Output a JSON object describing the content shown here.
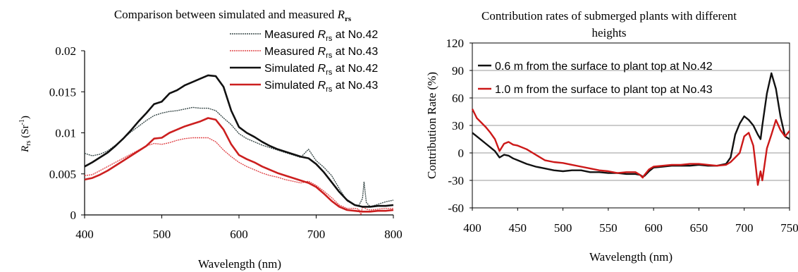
{
  "chart_data": [
    {
      "type": "line",
      "title": "Comparison between simulated and measured R rs",
      "title_parts": {
        "text": "Comparison between simulated and measured ",
        "symbol": "R",
        "subscript": "rs"
      },
      "xlabel": "Wavelength (nm)",
      "ylabel": "Rrs (Sr-1)",
      "ylabel_parts": {
        "symbol": "R",
        "subscript": "rs",
        "unit_open": " (Sr",
        "superscript": "-1",
        "unit_close": ")"
      },
      "xlim": [
        400,
        800
      ],
      "ylim": [
        0,
        0.02
      ],
      "xticks": [
        "400",
        "500",
        "600",
        "700",
        "800"
      ],
      "yticks": [
        "0",
        "0.005",
        "0.01",
        "0.015",
        "0.02"
      ],
      "grid": false,
      "legend_position": "top-right",
      "series": [
        {
          "name": "Measured Rrs at No.42",
          "legend_parts": {
            "pre": "Measured ",
            "symbol": "R",
            "subscript": "rs",
            "post": " at No.42"
          },
          "style": "measured",
          "color": "#3a4a4a",
          "x": [
            400,
            410,
            420,
            430,
            440,
            450,
            460,
            470,
            480,
            490,
            500,
            510,
            520,
            530,
            540,
            550,
            560,
            570,
            580,
            590,
            600,
            610,
            620,
            630,
            640,
            650,
            660,
            670,
            680,
            690,
            700,
            710,
            720,
            730,
            740,
            750,
            755,
            760,
            762,
            765,
            770,
            780,
            790,
            800
          ],
          "y": [
            0.0075,
            0.0072,
            0.0074,
            0.0078,
            0.0085,
            0.0093,
            0.0101,
            0.0108,
            0.0115,
            0.0121,
            0.0124,
            0.0126,
            0.0127,
            0.0129,
            0.0131,
            0.013,
            0.013,
            0.0127,
            0.0118,
            0.011,
            0.0099,
            0.0093,
            0.0089,
            0.0085,
            0.0082,
            0.0079,
            0.0076,
            0.0073,
            0.007,
            0.008,
            0.0066,
            0.0058,
            0.0048,
            0.0032,
            0.0017,
            0.0012,
            0.0011,
            0.002,
            0.004,
            0.0015,
            0.001,
            0.0013,
            0.0016,
            0.0018
          ]
        },
        {
          "name": "Measured Rrs at No.43",
          "legend_parts": {
            "pre": "Measured ",
            "symbol": "R",
            "subscript": "rs",
            "post": " at No.43"
          },
          "style": "measured",
          "color": "#e0484c",
          "x": [
            400,
            410,
            420,
            430,
            440,
            450,
            460,
            470,
            480,
            490,
            500,
            510,
            520,
            530,
            540,
            550,
            560,
            570,
            580,
            590,
            600,
            610,
            620,
            630,
            640,
            650,
            660,
            670,
            680,
            690,
            700,
            710,
            720,
            730,
            740,
            750,
            755,
            758,
            760,
            765,
            770,
            780,
            790,
            800
          ],
          "y": [
            0.0048,
            0.0049,
            0.0054,
            0.0059,
            0.0064,
            0.0069,
            0.0074,
            0.0079,
            0.0084,
            0.0087,
            0.0086,
            0.0088,
            0.0091,
            0.0093,
            0.0094,
            0.0094,
            0.0094,
            0.0089,
            0.0079,
            0.0071,
            0.0064,
            0.0059,
            0.0055,
            0.0051,
            0.0048,
            0.0046,
            0.0043,
            0.0041,
            0.0039,
            0.0041,
            0.0036,
            0.0029,
            0.0021,
            0.0012,
            0.0008,
            0.0008,
            0.0007,
            0.0,
            0.001,
            0.0007,
            0.0006,
            0.0007,
            0.0008,
            0.0008
          ]
        },
        {
          "name": "Simulated Rrs at No.42",
          "legend_parts": {
            "pre": "Simulated ",
            "symbol": "R",
            "subscript": "rs",
            "post": " at No.42"
          },
          "style": "simulated",
          "color": "#111111",
          "x": [
            400,
            410,
            420,
            430,
            440,
            450,
            460,
            470,
            480,
            490,
            500,
            510,
            520,
            530,
            540,
            550,
            560,
            570,
            580,
            590,
            600,
            610,
            620,
            630,
            640,
            650,
            660,
            670,
            680,
            690,
            700,
            710,
            720,
            730,
            740,
            750,
            760,
            770,
            780,
            790,
            800
          ],
          "y": [
            0.0059,
            0.0064,
            0.007,
            0.0076,
            0.0084,
            0.0093,
            0.0103,
            0.0114,
            0.0124,
            0.0135,
            0.0138,
            0.0148,
            0.0152,
            0.0158,
            0.0162,
            0.0166,
            0.017,
            0.0169,
            0.0156,
            0.0127,
            0.0107,
            0.01,
            0.0095,
            0.0089,
            0.0084,
            0.008,
            0.0077,
            0.0074,
            0.0071,
            0.0069,
            0.0062,
            0.0052,
            0.004,
            0.0028,
            0.0018,
            0.0012,
            0.001,
            0.001,
            0.0011,
            0.0011,
            0.0012
          ]
        },
        {
          "name": "Simulated Rrs at No.43",
          "legend_parts": {
            "pre": "Simulated ",
            "symbol": "R",
            "subscript": "rs",
            "post": " at No.43"
          },
          "style": "simulated",
          "color": "#cc1f1f",
          "x": [
            400,
            410,
            420,
            430,
            440,
            450,
            460,
            470,
            480,
            490,
            500,
            510,
            520,
            530,
            540,
            550,
            560,
            570,
            580,
            590,
            600,
            610,
            620,
            630,
            640,
            650,
            660,
            670,
            680,
            690,
            700,
            710,
            720,
            730,
            740,
            750,
            760,
            770,
            780,
            790,
            800
          ],
          "y": [
            0.0043,
            0.0045,
            0.0049,
            0.0054,
            0.006,
            0.0066,
            0.0072,
            0.0078,
            0.0084,
            0.0093,
            0.0094,
            0.01,
            0.0104,
            0.0108,
            0.0111,
            0.0114,
            0.0118,
            0.0116,
            0.0104,
            0.0086,
            0.0073,
            0.0068,
            0.0064,
            0.0059,
            0.0055,
            0.0051,
            0.0048,
            0.0045,
            0.0042,
            0.0039,
            0.0034,
            0.0026,
            0.0017,
            0.001,
            0.0006,
            0.0005,
            0.0004,
            0.0004,
            0.0005,
            0.0005,
            0.0006
          ]
        }
      ]
    },
    {
      "type": "line",
      "title": "Contribution rates of submerged plants with different heights",
      "title_lines": [
        "Contribution rates of submerged plants with different",
        "heights"
      ],
      "xlabel": "Wavelength (nm)",
      "ylabel": "Contribution Rate (%)",
      "xlim": [
        400,
        750
      ],
      "ylim": [
        -60,
        120
      ],
      "xticks": [
        "400",
        "450",
        "500",
        "550",
        "600",
        "650",
        "700",
        "750"
      ],
      "yticks": [
        "-60",
        "-30",
        "0",
        "30",
        "60",
        "90",
        "120"
      ],
      "grid": true,
      "legend_position": "top-left",
      "series": [
        {
          "name": "0.6 m from the surface to plant top at No.42",
          "color": "#111111",
          "x": [
            400,
            405,
            410,
            415,
            420,
            425,
            430,
            435,
            440,
            445,
            450,
            460,
            470,
            480,
            490,
            500,
            510,
            520,
            530,
            540,
            550,
            560,
            570,
            580,
            585,
            588,
            590,
            595,
            600,
            610,
            620,
            630,
            640,
            650,
            660,
            670,
            680,
            685,
            690,
            695,
            700,
            705,
            710,
            715,
            718,
            720,
            725,
            730,
            735,
            740,
            745,
            750
          ],
          "y": [
            22,
            18,
            14,
            10,
            6,
            2,
            -5,
            -2,
            -3,
            -6,
            -8,
            -12,
            -15,
            -17,
            -19,
            -20,
            -19,
            -19,
            -21,
            -21,
            -22,
            -22,
            -23,
            -23,
            -24,
            -26,
            -25,
            -20,
            -16,
            -15,
            -14,
            -14,
            -14,
            -13,
            -14,
            -14,
            -12,
            -5,
            20,
            32,
            40,
            36,
            30,
            20,
            15,
            30,
            65,
            87,
            70,
            40,
            18,
            15
          ]
        },
        {
          "name": "1.0 m from the surface to plant top at No.43",
          "color": "#cc1818",
          "x": [
            400,
            405,
            410,
            415,
            420,
            425,
            430,
            435,
            440,
            445,
            450,
            460,
            470,
            480,
            490,
            500,
            510,
            520,
            530,
            540,
            550,
            560,
            570,
            580,
            585,
            588,
            590,
            595,
            600,
            610,
            620,
            630,
            640,
            650,
            660,
            670,
            680,
            685,
            690,
            695,
            700,
            705,
            710,
            712,
            715,
            718,
            720,
            725,
            730,
            735,
            740,
            745,
            750
          ],
          "y": [
            48,
            38,
            33,
            28,
            22,
            15,
            2,
            10,
            12,
            9,
            8,
            4,
            -2,
            -8,
            -10,
            -11,
            -13,
            -15,
            -17,
            -19,
            -20,
            -22,
            -21,
            -21,
            -24,
            -27,
            -24,
            -18,
            -15,
            -14,
            -13,
            -13,
            -12,
            -12,
            -13,
            -14,
            -13,
            -10,
            -5,
            0,
            18,
            22,
            8,
            -8,
            -35,
            -20,
            -30,
            5,
            20,
            36,
            25,
            18,
            24
          ]
        }
      ]
    }
  ]
}
